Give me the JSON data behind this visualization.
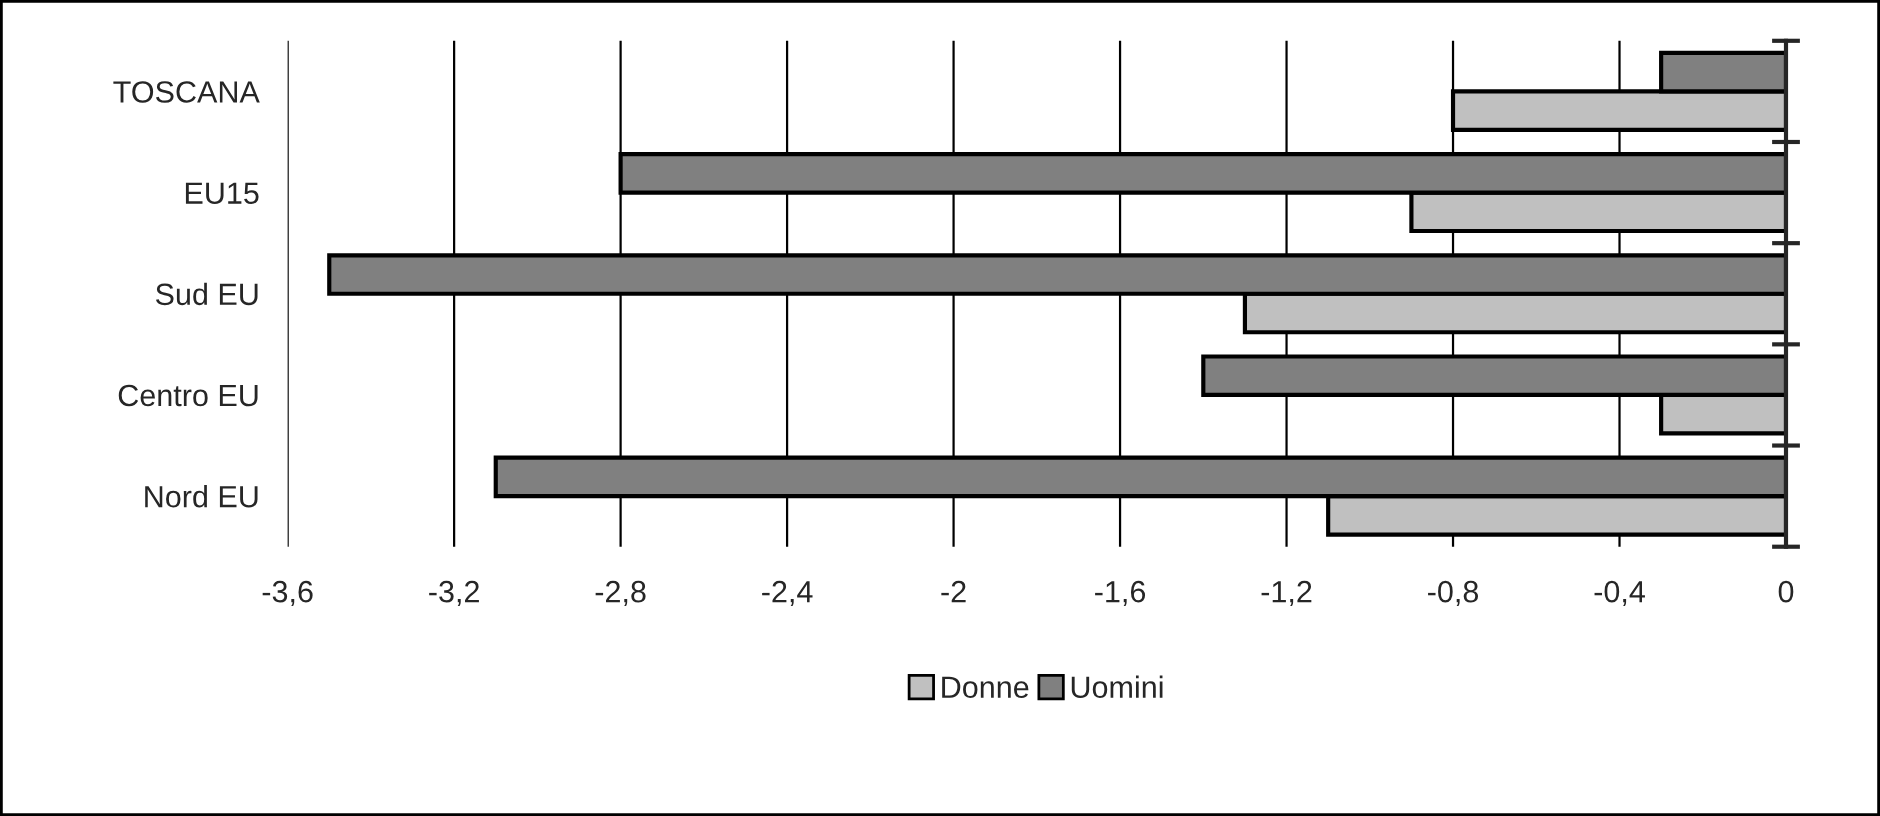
{
  "chart_data": {
    "type": "bar",
    "orientation": "horizontal",
    "categories": [
      "TOSCANA",
      "EU15",
      "Sud EU",
      "Centro EU",
      "Nord EU"
    ],
    "series": [
      {
        "name": "Donne",
        "color": "#c0c0c0",
        "values": [
          -0.8,
          -0.9,
          -1.3,
          -0.3,
          -1.1
        ]
      },
      {
        "name": "Uomini",
        "color": "#808080",
        "values": [
          -0.3,
          -2.8,
          -3.5,
          -1.4,
          -3.1
        ]
      }
    ],
    "xlim": [
      -3.6,
      0
    ],
    "xticks": [
      {
        "value": -3.6,
        "label": "-3,6"
      },
      {
        "value": -3.2,
        "label": "-3,2"
      },
      {
        "value": -2.8,
        "label": "-2,8"
      },
      {
        "value": -2.4,
        "label": "-2,4"
      },
      {
        "value": -2,
        "label": "-2"
      },
      {
        "value": -1.6,
        "label": "-1,6"
      },
      {
        "value": -1.2,
        "label": "-1,2"
      },
      {
        "value": -0.8,
        "label": "-0,8"
      },
      {
        "value": -0.4,
        "label": "-0,4"
      },
      0
    ],
    "grid": "x",
    "legend": "bottom"
  }
}
